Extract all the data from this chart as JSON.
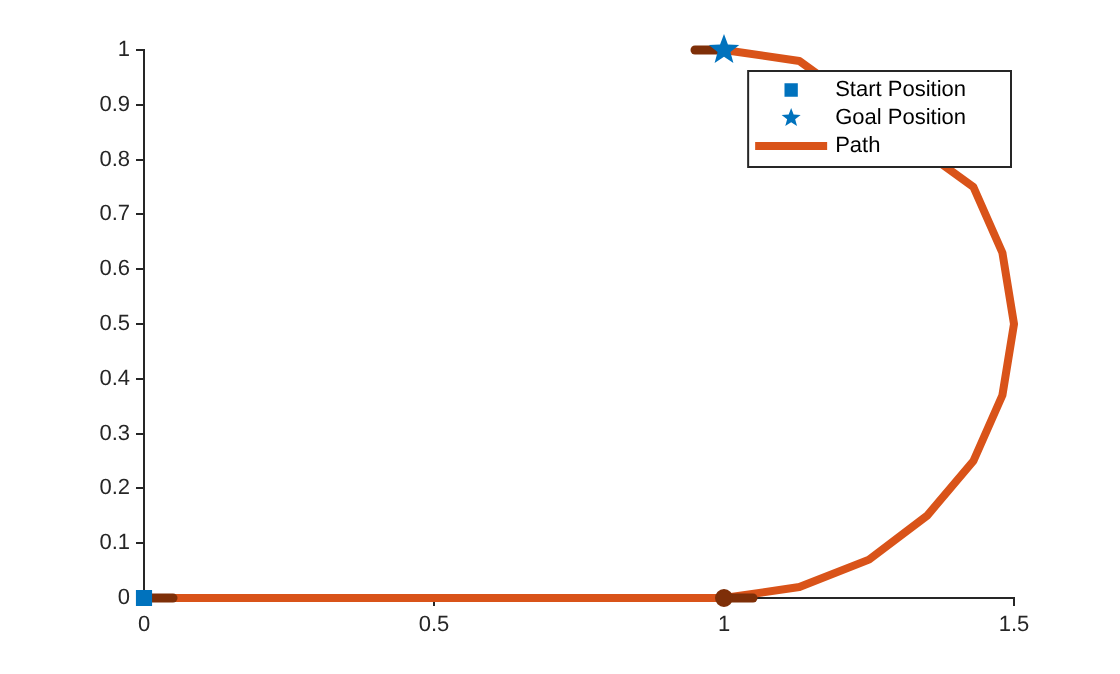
{
  "chart_data": {
    "type": "line",
    "xlim": [
      0,
      1.5
    ],
    "ylim": [
      0,
      1
    ],
    "xticks": [
      0,
      0.5,
      1,
      1.5
    ],
    "yticks": [
      0,
      0.1,
      0.2,
      0.3,
      0.4,
      0.5,
      0.6,
      0.7,
      0.8,
      0.9,
      1
    ],
    "legend": "top right",
    "series": [
      {
        "name": "Start Position",
        "type": "scatter",
        "color": "#0072bd",
        "marker": "square",
        "x": [
          0
        ],
        "values": [
          0
        ]
      },
      {
        "name": "Goal Position",
        "type": "scatter",
        "color": "#0072bd",
        "marker": "star",
        "x": [
          1
        ],
        "values": [
          1
        ]
      },
      {
        "name": "Path",
        "type": "line",
        "color": "#d95319",
        "marker": "none",
        "x": [
          0,
          1,
          1.13,
          1.25,
          1.35,
          1.43,
          1.48,
          1.5,
          1.48,
          1.43,
          1.13,
          1
        ],
        "values": [
          0,
          0,
          0.02,
          0.07,
          0.15,
          0.25,
          0.37,
          0.5,
          0.63,
          0.75,
          0.98,
          1
        ]
      },
      {
        "type": "line",
        "color": "#7e2f08",
        "marker": "none",
        "x": [
          0,
          0.05
        ],
        "values": [
          0,
          0
        ]
      },
      {
        "type": "line",
        "color": "#7e2f08",
        "marker": "none",
        "x": [
          1,
          1.05
        ],
        "values": [
          0,
          0
        ]
      },
      {
        "type": "line",
        "color": "#7e2f08",
        "marker": "none",
        "x": [
          0.95,
          1
        ],
        "values": [
          1,
          1
        ]
      },
      {
        "type": "scatter",
        "color": "#7e2f08",
        "marker": "circle",
        "x": [
          1
        ],
        "values": [
          0
        ]
      }
    ]
  }
}
